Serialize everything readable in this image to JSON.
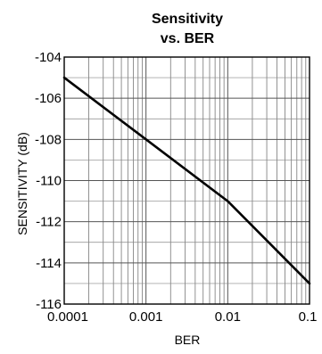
{
  "chart_data": {
    "type": "line",
    "title": [
      "Sensitivity",
      "vs. BER"
    ],
    "xlabel": "BER",
    "ylabel": "SENSITIVITY (dB)",
    "x_scale": "log",
    "xlim": [
      0.0001,
      0.1
    ],
    "ylim": [
      -116,
      -104
    ],
    "x_ticks": [
      0.0001,
      0.001,
      0.01,
      0.1
    ],
    "x_tick_labels": [
      "0.0001",
      "0.001",
      "0.01",
      "0.1"
    ],
    "y_ticks": [
      -104,
      -106,
      -108,
      -110,
      -112,
      -114,
      -116
    ],
    "y_tick_labels": [
      "-104",
      "-106",
      "-108",
      "-110",
      "-112",
      "-114",
      "-116"
    ],
    "grid": true,
    "series": [
      {
        "x": [
          0.0001,
          0.001,
          0.01,
          0.1
        ],
        "y": [
          -105,
          -108,
          -111,
          -115
        ],
        "color": "#000000"
      }
    ]
  }
}
